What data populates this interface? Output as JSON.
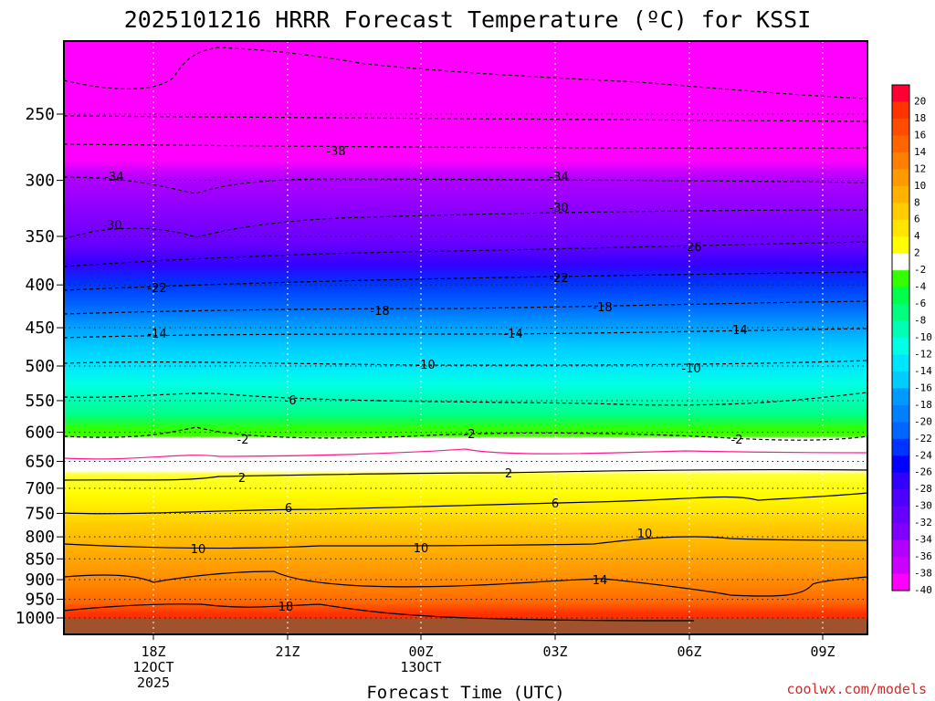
{
  "chart_data": {
    "type": "heatmap",
    "title": "2025101216 HRRR Forecast Temperature (ºC) for KSSI",
    "xlabel": "Forecast Time (UTC)",
    "ylabel": "",
    "y_scale": "log",
    "y_inverted": true,
    "ylim": [
      1030,
      200
    ],
    "y_ticks": [
      250,
      300,
      350,
      400,
      450,
      500,
      550,
      600,
      650,
      700,
      750,
      800,
      850,
      900,
      950,
      1000
    ],
    "y_tick_labels": [
      "250",
      "300",
      "350",
      "400",
      "450",
      "500",
      "550",
      "600",
      "650",
      "700",
      "750",
      "800",
      "850",
      "900",
      "950",
      "1000"
    ],
    "x_ticks": [
      {
        "lines": [
          "18Z",
          "12OCT",
          "2025"
        ]
      },
      {
        "lines": [
          "21Z"
        ]
      },
      {
        "lines": [
          "00Z",
          "13OCT"
        ]
      },
      {
        "lines": [
          "03Z"
        ]
      },
      {
        "lines": [
          "06Z"
        ]
      },
      {
        "lines": [
          "09Z"
        ]
      }
    ],
    "grid": true,
    "colorbar_labels": [
      "20",
      "18",
      "16",
      "14",
      "12",
      "10",
      "8",
      "6",
      "4",
      "2",
      "-2",
      "-4",
      "-6",
      "-8",
      "-10",
      "-12",
      "-14",
      "-16",
      "-18",
      "-20",
      "-22",
      "-24",
      "-26",
      "-28",
      "-30",
      "-32",
      "-34",
      "-36",
      "-38",
      "-40"
    ],
    "colorbar_colors": [
      "#ff0033",
      "#ff3300",
      "#ff4d00",
      "#ff6600",
      "#ff7f00",
      "#ff9900",
      "#ffb200",
      "#ffcc00",
      "#ffe500",
      "#ffff00",
      "#ffffff",
      "#33ff00",
      "#00ff4d",
      "#00ff80",
      "#00ffb2",
      "#00ffe5",
      "#00e5ff",
      "#00ccff",
      "#0099ff",
      "#0080ff",
      "#0066ff",
      "#0033ff",
      "#0000ff",
      "#3300ff",
      "#4d00ff",
      "#6600ff",
      "#8000ff",
      "#b200ff",
      "#cc00ff",
      "#ff00ff"
    ],
    "contour_labels": [
      {
        "text": "-38"
      },
      {
        "text": "-34"
      },
      {
        "text": "-34"
      },
      {
        "text": "-30"
      },
      {
        "text": "-30"
      },
      {
        "text": "-26"
      },
      {
        "text": "-22"
      },
      {
        "text": "-22"
      },
      {
        "text": "-18"
      },
      {
        "text": "-18"
      },
      {
        "text": "-14"
      },
      {
        "text": "-14"
      },
      {
        "text": "-14"
      },
      {
        "text": "-10"
      },
      {
        "text": "-10"
      },
      {
        "text": "-6"
      },
      {
        "text": "-2"
      },
      {
        "text": "-2"
      },
      {
        "text": "-2"
      },
      {
        "text": "2"
      },
      {
        "text": "2"
      },
      {
        "text": "6"
      },
      {
        "text": "6"
      },
      {
        "text": "10"
      },
      {
        "text": "10"
      },
      {
        "text": "10"
      },
      {
        "text": "14"
      },
      {
        "text": "18"
      }
    ],
    "credit": "coolwx.com/models"
  }
}
